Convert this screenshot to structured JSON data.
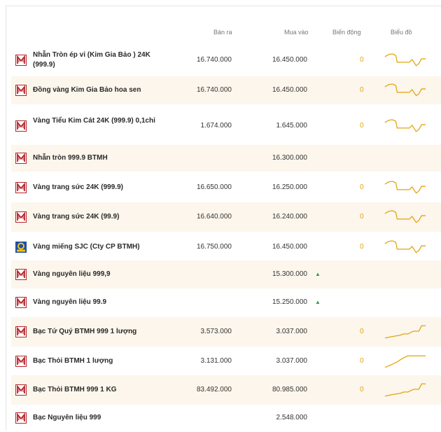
{
  "columns": {
    "sell": "Bán ra",
    "buy": "Mua vào",
    "change": "Biến động",
    "chart": "Biểu đồ"
  },
  "colors": {
    "accent": "#e2a40d",
    "alt_row": "#fcf6ec",
    "up": "#2e9e4f",
    "logo_red": "#b5242b"
  },
  "rows": [
    {
      "name": "Nhẫn Tròn ép vỉ (Kim Gia Bảo ) 24K (999.9)",
      "sell": "16.740.000",
      "buy": "16.450.000",
      "change": "0",
      "icon": "btmh-logo-icon",
      "chart": "dip"
    },
    {
      "name": "Đồng vàng Kim Gia Bảo hoa sen",
      "sell": "16.740.000",
      "buy": "16.450.000",
      "change": "0",
      "icon": "btmh-logo-icon",
      "chart": "dip"
    },
    {
      "name": "Vàng Tiểu Kim Cát 24K (999.9) 0,1chỉ",
      "sell": "1.674.000",
      "buy": "1.645.000",
      "change": "0",
      "icon": "btmh-logo-icon",
      "chart": "dip"
    },
    {
      "name": "Nhẫn tròn 999.9 BTMH",
      "sell": "",
      "buy": "16.300.000",
      "change": "",
      "icon": "btmh-logo-icon",
      "chart": "none"
    },
    {
      "name": "Vàng trang sức 24K (999.9)",
      "sell": "16.650.000",
      "buy": "16.250.000",
      "change": "0",
      "icon": "btmh-logo-icon",
      "chart": "dip"
    },
    {
      "name": "Vàng trang sức 24K (99.9)",
      "sell": "16.640.000",
      "buy": "16.240.000",
      "change": "0",
      "icon": "btmh-logo-icon",
      "chart": "dip"
    },
    {
      "name": "Vàng miếng SJC (Cty CP BTMH)",
      "sell": "16.750.000",
      "buy": "16.450.000",
      "change": "0",
      "icon": "sjc-logo-icon",
      "chart": "dip"
    },
    {
      "name": "Vàng nguyên liệu 999,9",
      "sell": "",
      "buy": "15.300.000",
      "change": "",
      "icon": "btmh-logo-icon",
      "chart": "none",
      "up": "▲"
    },
    {
      "name": "Vàng nguyên liệu 99.9",
      "sell": "",
      "buy": "15.250.000",
      "change": "",
      "icon": "btmh-logo-icon",
      "chart": "none",
      "up": "▲"
    },
    {
      "name": "Bạc Tứ Quý BTMH 999 1 lượng",
      "sell": "3.573.000",
      "buy": "3.037.000",
      "change": "0",
      "icon": "btmh-logo-icon",
      "chart": "rise"
    },
    {
      "name": "Bạc Thỏi BTMH 1 lượng",
      "sell": "3.131.000",
      "buy": "3.037.000",
      "change": "0",
      "icon": "btmh-logo-icon",
      "chart": "curve"
    },
    {
      "name": "Bạc Thỏi BTMH 999 1 KG",
      "sell": "83.492.000",
      "buy": "80.985.000",
      "change": "0",
      "icon": "btmh-logo-icon",
      "chart": "rise"
    },
    {
      "name": "Bạc Nguyên liệu 999",
      "sell": "",
      "buy": "2.548.000",
      "change": "",
      "icon": "btmh-logo-icon",
      "chart": "none"
    }
  ]
}
